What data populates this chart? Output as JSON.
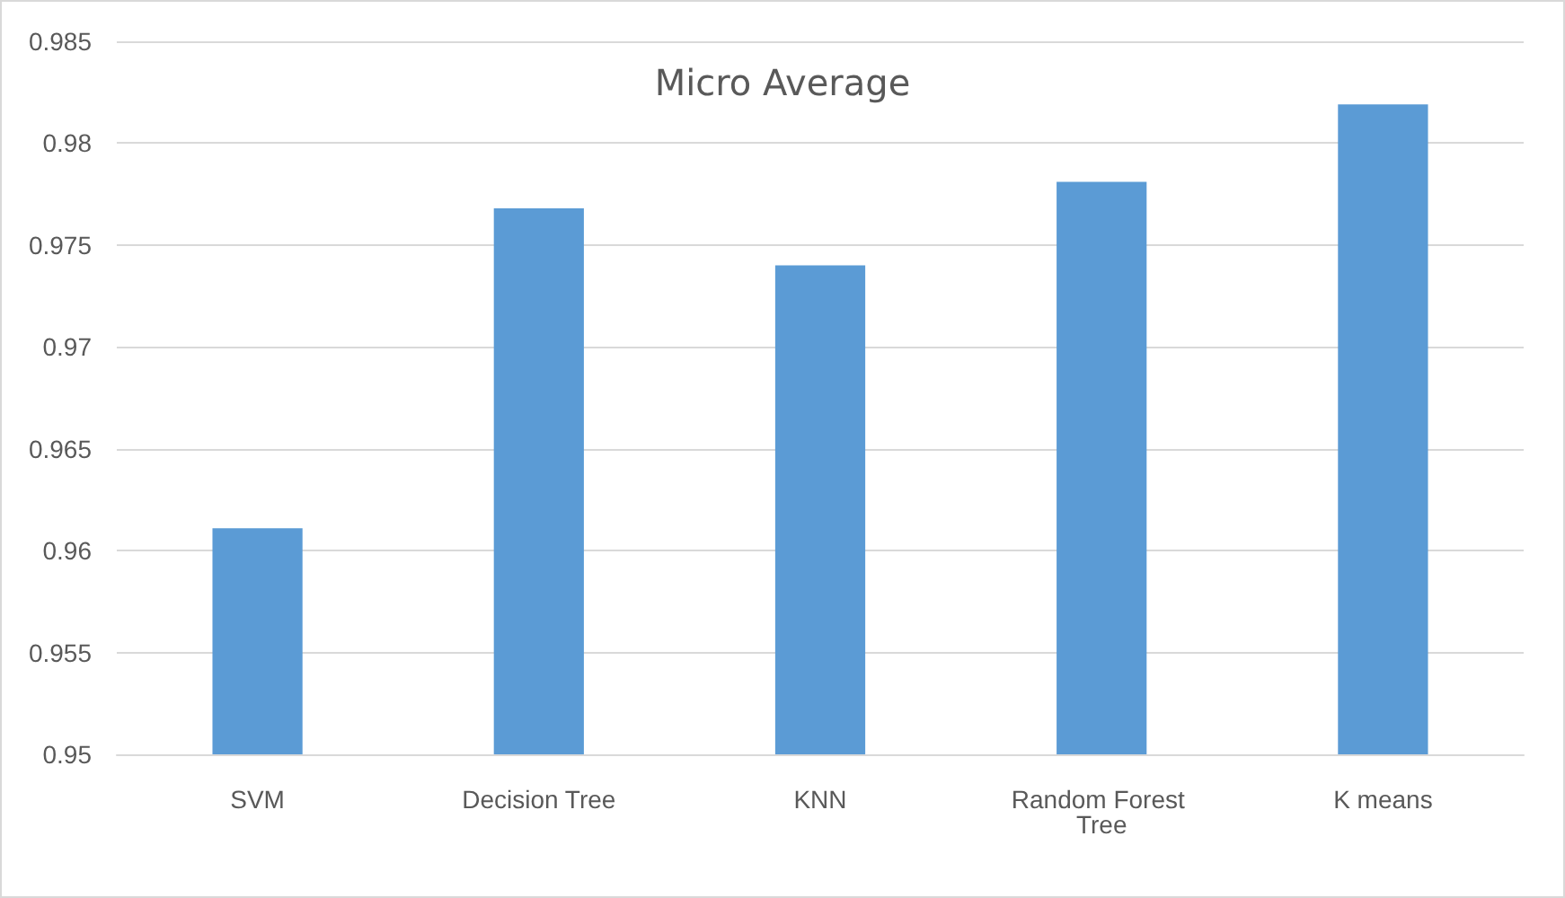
{
  "chart_data": {
    "type": "bar",
    "title": "Micro Average",
    "categories": [
      "SVM",
      "Decision Tree",
      "KNN",
      "Random Forest Tree",
      "K means"
    ],
    "values": [
      0.9611,
      0.9768,
      0.974,
      0.9781,
      0.9819
    ],
    "color": "#5b9bd5",
    "ylim": [
      0.95,
      0.985
    ],
    "yticks": [
      0.95,
      0.955,
      0.96,
      0.965,
      0.97,
      0.975,
      0.98,
      0.985
    ],
    "grid": "y"
  }
}
